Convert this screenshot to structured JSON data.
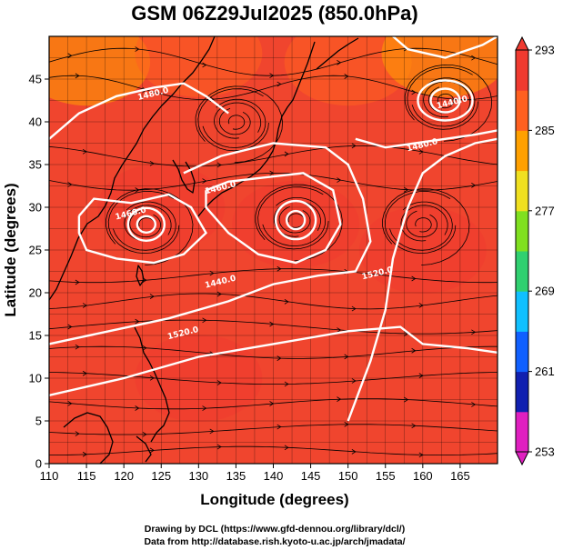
{
  "chart_data": {
    "type": "heatmap",
    "title": "GSM 06Z29Jul2025 (850.0hPa)",
    "xlabel": "Longitude (degrees)",
    "ylabel": "Latitude  (degrees)",
    "xlim": [
      110,
      170
    ],
    "ylim": [
      0,
      50
    ],
    "xticks": [
      110,
      115,
      120,
      125,
      130,
      135,
      140,
      145,
      150,
      155,
      160,
      165
    ],
    "yticks": [
      0,
      5,
      10,
      15,
      20,
      25,
      30,
      35,
      40,
      45
    ],
    "grid": true,
    "colorbar": {
      "placement": "right",
      "min": 253,
      "max": 293,
      "ticks": [
        253,
        261,
        269,
        277,
        285,
        293
      ],
      "colors": [
        "#e020c0",
        "#1020b0",
        "#1060ff",
        "#10c0ff",
        "#30d070",
        "#80e020",
        "#f0e020",
        "#ffa000",
        "#ff6020",
        "#f03a30"
      ]
    },
    "field": {
      "variable": "temperature",
      "samples": [
        {
          "lon": 115,
          "lat": 47,
          "value": 281
        },
        {
          "lon": 130,
          "lat": 48,
          "value": 285
        },
        {
          "lon": 150,
          "lat": 47,
          "value": 286
        },
        {
          "lon": 163,
          "lat": 48,
          "value": 283
        },
        {
          "lon": 125,
          "lat": 30,
          "value": 292
        },
        {
          "lon": 143,
          "lat": 28,
          "value": 292
        },
        {
          "lon": 160,
          "lat": 25,
          "value": 291
        },
        {
          "lon": 130,
          "lat": 10,
          "value": 291
        }
      ]
    },
    "contours": {
      "variable": "geopotential height",
      "labels": [
        {
          "text": "1480.0",
          "lon": 124,
          "lat": 43
        },
        {
          "text": "1460.0",
          "lon": 133,
          "lat": 32
        },
        {
          "text": "1460.0",
          "lon": 121,
          "lat": 29
        },
        {
          "text": "1440.0",
          "lon": 133,
          "lat": 21
        },
        {
          "text": "1520.0",
          "lon": 128,
          "lat": 15
        },
        {
          "text": "1520.0",
          "lon": 154,
          "lat": 22
        },
        {
          "text": "1480.0",
          "lon": 160,
          "lat": 37
        },
        {
          "text": "1440.0",
          "lon": 164,
          "lat": 42
        }
      ]
    },
    "vortices": [
      {
        "lon": 123,
        "lat": 28,
        "sense": "cyclonic"
      },
      {
        "lon": 143,
        "lat": 28.5,
        "sense": "cyclonic"
      },
      {
        "lon": 163,
        "lat": 42.5,
        "sense": "cyclonic"
      },
      {
        "lon": 135,
        "lat": 40,
        "sense": "cyclonic"
      },
      {
        "lon": 160,
        "lat": 28,
        "sense": "cyclonic"
      }
    ]
  },
  "credits": {
    "line1": "Drawing by DCL (https://www.gfd-dennou.org/library/dcl/)",
    "line2": "Data from http://database.rish.kyoto-u.ac.jp/arch/jmadata/"
  }
}
